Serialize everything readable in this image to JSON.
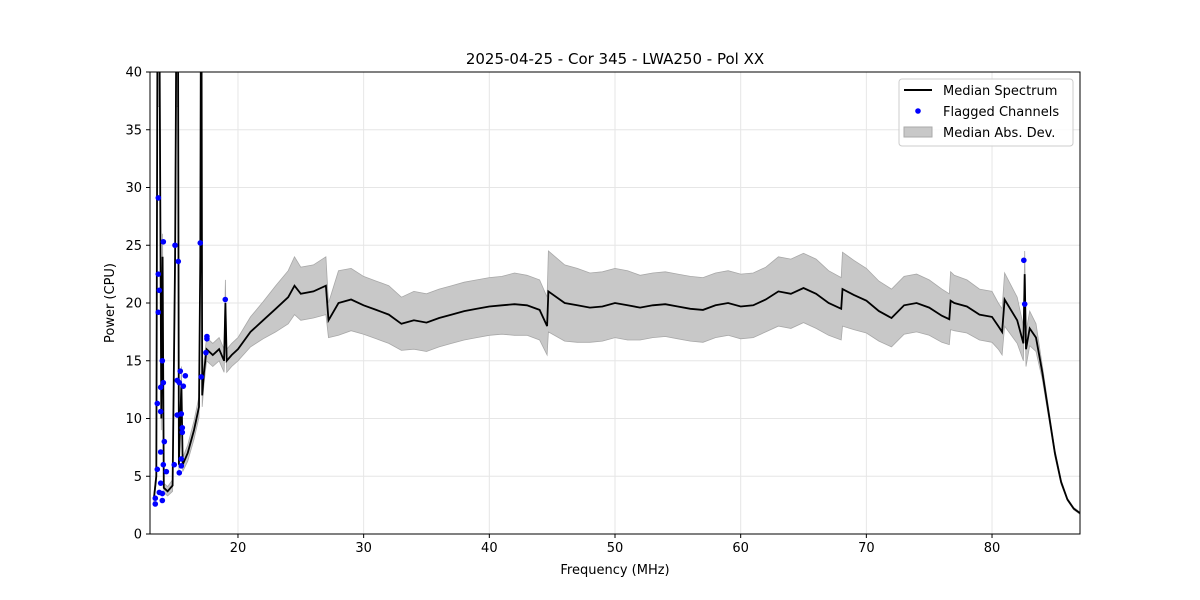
{
  "chart_data": {
    "type": "line",
    "title": "2025-04-25 - Cor 345 - LWA250 - Pol XX",
    "xlabel": "Frequency (MHz)",
    "ylabel": "Power (CPU)",
    "xlim": [
      13,
      87
    ],
    "ylim": [
      0,
      40
    ],
    "xticks": [
      20,
      30,
      40,
      50,
      60,
      70,
      80
    ],
    "yticks": [
      0,
      5,
      10,
      15,
      20,
      25,
      30,
      35,
      40
    ],
    "grid": true,
    "legend_placement": "top-right",
    "legend": [
      "Median Spectrum",
      "Flagged Channels",
      "Median Abs. Dev."
    ],
    "colors": {
      "median": "#000000",
      "flagged": "#0000ff",
      "mad": "#c8c8c8"
    },
    "series": [
      {
        "name": "Median Spectrum",
        "x": [
          13.3,
          13.5,
          13.6,
          13.75,
          13.9,
          14.0,
          14.1,
          14.4,
          14.8,
          15.0,
          15.1,
          15.23,
          15.3,
          15.5,
          15.6,
          16.0,
          16.5,
          16.9,
          17.0,
          17.05,
          17.1,
          17.15,
          17.3,
          17.5,
          18,
          18.5,
          18.9,
          19.0,
          19.1,
          19.5,
          20,
          21,
          22,
          23,
          24,
          24.5,
          25,
          26,
          27,
          27.2,
          28,
          29,
          30,
          31,
          32,
          33,
          34,
          35,
          36,
          37,
          38,
          39,
          40,
          41,
          42,
          43,
          44,
          44.6,
          44.7,
          46,
          47,
          48,
          49,
          50,
          51,
          52,
          53,
          54,
          55,
          56,
          57,
          58,
          59,
          60,
          61,
          62,
          63,
          64,
          65,
          66,
          67,
          68,
          68.1,
          69,
          70,
          71,
          72,
          73,
          74,
          75,
          76,
          76.6,
          76.7,
          77,
          78,
          79,
          80,
          80.5,
          80.8,
          81,
          82,
          82.5,
          82.6,
          82.7,
          83,
          83.5,
          84,
          84.5,
          85,
          85.5,
          86,
          86.5,
          87
        ],
        "y": [
          3,
          5,
          45,
          45,
          10,
          24,
          4,
          3.7,
          4.2,
          24,
          45,
          45,
          6,
          13,
          6,
          7,
          9,
          11,
          24,
          45,
          45,
          12,
          14,
          16,
          15.5,
          16,
          15,
          20,
          15,
          15.5,
          16,
          17.5,
          18.5,
          19.5,
          20.5,
          21.5,
          20.8,
          21,
          21.5,
          18.5,
          20,
          20.3,
          19.8,
          19.4,
          19,
          18.2,
          18.5,
          18.3,
          18.7,
          19,
          19.3,
          19.5,
          19.7,
          19.8,
          19.9,
          19.8,
          19.4,
          18,
          21,
          20,
          19.8,
          19.6,
          19.7,
          20,
          19.8,
          19.6,
          19.8,
          19.9,
          19.7,
          19.5,
          19.4,
          19.8,
          20,
          19.7,
          19.8,
          20.3,
          21,
          20.8,
          21.3,
          20.8,
          20,
          19.5,
          21.2,
          20.7,
          20.2,
          19.3,
          18.7,
          19.8,
          20,
          19.6,
          18.9,
          18.6,
          20.2,
          20,
          19.7,
          19,
          18.8,
          18,
          17.5,
          20.3,
          18.5,
          16.5,
          22.5,
          16,
          17.8,
          17,
          14,
          10.5,
          7,
          4.5,
          3,
          2.2,
          1.8
        ],
        "mad": [
          0.3,
          0.5,
          8,
          8,
          1,
          2,
          0.4,
          0.4,
          0.5,
          3,
          8,
          8,
          0.6,
          1.5,
          0.6,
          0.7,
          0.8,
          0.9,
          2,
          8,
          8,
          1,
          1,
          1,
          1,
          1,
          1,
          2,
          1,
          1,
          1,
          1.3,
          1.6,
          2,
          2.3,
          2.5,
          2.3,
          2.3,
          2.5,
          1.5,
          2.8,
          2.7,
          2.5,
          2.5,
          2.5,
          2.3,
          2.5,
          2.5,
          2.5,
          2.5,
          2.5,
          2.5,
          2.5,
          2.5,
          2.7,
          2.6,
          2.6,
          2.5,
          3.5,
          3.3,
          3.2,
          3,
          3,
          3,
          3,
          2.8,
          2.8,
          2.8,
          2.8,
          2.8,
          2.8,
          2.8,
          2.8,
          2.8,
          2.8,
          2.8,
          3,
          3,
          3,
          3,
          2.8,
          2.7,
          3.2,
          3,
          2.8,
          2.6,
          2.5,
          2.5,
          2.5,
          2.4,
          2.3,
          2.2,
          2.5,
          2.4,
          2.3,
          2.2,
          2.2,
          2,
          2,
          2.3,
          2,
          1.5,
          2,
          1.5,
          1.5,
          1.2,
          0.6,
          0.4,
          0.3,
          0.2,
          0.1,
          0.1,
          0.1
        ]
      },
      {
        "name": "Flagged Channels",
        "x": [
          13.66,
          14.06,
          13.66,
          13.74,
          13.66,
          13.98,
          14.06,
          13.85,
          13.58,
          13.85,
          14.14,
          13.85,
          13.58,
          14.06,
          14.3,
          13.85,
          13.74,
          13.98,
          13.42,
          13.42,
          13.98,
          14.99,
          15.25,
          17.0,
          18.99,
          17.53,
          17.53,
          17.45,
          17.08,
          15.41,
          15.17,
          15.33,
          15.81,
          15.65,
          15.17,
          15.49,
          15.57,
          15.57,
          14.93,
          15.49,
          15.49,
          15.33,
          82.53,
          82.6
        ],
        "y": [
          29.1,
          25.3,
          22.5,
          21.1,
          19.2,
          15.0,
          13.1,
          12.7,
          11.3,
          10.6,
          8.0,
          7.1,
          5.6,
          6.0,
          5.4,
          4.4,
          3.6,
          3.5,
          3.1,
          2.6,
          2.9,
          25.0,
          23.6,
          25.2,
          20.3,
          17.1,
          16.9,
          15.7,
          13.6,
          14.1,
          13.3,
          13.1,
          13.7,
          12.8,
          10.3,
          10.4,
          9.2,
          8.8,
          6.0,
          6.5,
          5.9,
          5.3,
          23.7,
          19.9
        ]
      }
    ]
  }
}
